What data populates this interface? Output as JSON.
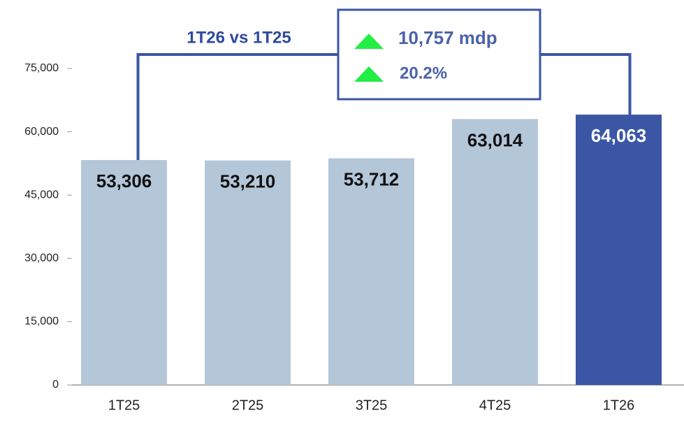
{
  "chart_data": {
    "type": "bar",
    "categories": [
      "1T25",
      "2T25",
      "3T25",
      "4T25",
      "1T26"
    ],
    "values": [
      53306,
      53210,
      53712,
      63014,
      64063
    ],
    "value_labels": [
      "53,306",
      "53,210",
      "53,712",
      "63,014",
      "64,063"
    ],
    "colors": [
      "#b4c7d9",
      "#b4c7d9",
      "#b4c7d9",
      "#b4c7d9",
      "#3a56a5"
    ],
    "label_colors": [
      "#111111",
      "#111111",
      "#111111",
      "#111111",
      "#ffffff"
    ],
    "ylim": [
      0,
      75000
    ],
    "yticks": [
      0,
      {
        "value": 15000,
        "label": "15,000"
      },
      {
        "value": 30000,
        "label": "30,000"
      },
      {
        "value": 45000,
        "label": "45,000"
      },
      {
        "value": 60000,
        "label": "60,000"
      },
      {
        "value": 75000,
        "label": "75,000"
      }
    ],
    "comparison": {
      "label": "1T26 vs 1T25",
      "change": "10,757 mdp",
      "change_pct": "20.2%",
      "arrow_color": "#22ee44",
      "color": "#3a56a5"
    }
  }
}
